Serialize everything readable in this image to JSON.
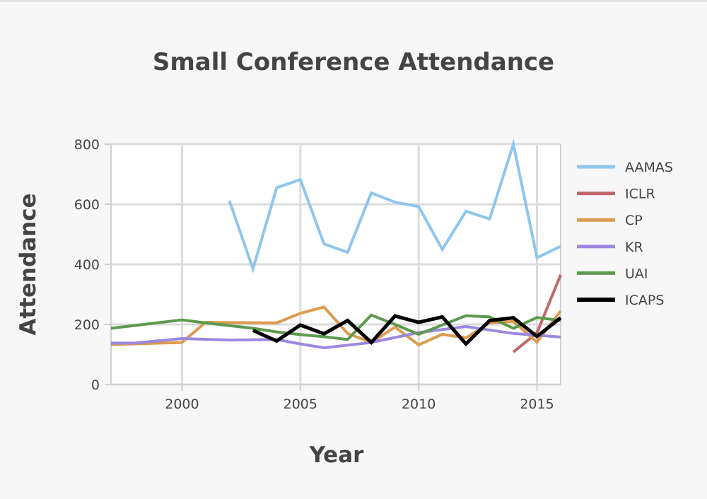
{
  "title": "Small Conference Attendance",
  "chart_data": {
    "type": "line",
    "title": "Small Conference Attendance",
    "xlabel": "Year",
    "ylabel": "Attendance",
    "xlim": [
      1997,
      2016
    ],
    "ylim": [
      0,
      800
    ],
    "x_ticks": [
      2000,
      2005,
      2010,
      2015
    ],
    "y_ticks": [
      0,
      200,
      400,
      600,
      800
    ],
    "grid": true,
    "legend_position": "right",
    "series": [
      {
        "name": "AAMAS",
        "color": "#8ec6ee",
        "points": [
          [
            2002,
            612
          ],
          [
            2003,
            385
          ],
          [
            2004,
            655
          ],
          [
            2005,
            682
          ],
          [
            2006,
            468
          ],
          [
            2007,
            440
          ],
          [
            2008,
            638
          ],
          [
            2009,
            607
          ],
          [
            2010,
            592
          ],
          [
            2011,
            450
          ],
          [
            2012,
            577
          ],
          [
            2013,
            551
          ],
          [
            2014,
            800
          ],
          [
            2015,
            422
          ],
          [
            2016,
            460
          ]
        ]
      },
      {
        "name": "ICLR",
        "color": "#c06868",
        "points": [
          [
            2014,
            108
          ],
          [
            2015,
            172
          ],
          [
            2016,
            365
          ]
        ]
      },
      {
        "name": "CP",
        "color": "#dd9b50",
        "points": [
          [
            1997,
            133
          ],
          [
            2000,
            140
          ],
          [
            2001,
            207
          ],
          [
            2004,
            205
          ],
          [
            2005,
            237
          ],
          [
            2006,
            258
          ],
          [
            2007,
            170
          ],
          [
            2008,
            140
          ],
          [
            2009,
            191
          ],
          [
            2010,
            132
          ],
          [
            2011,
            167
          ],
          [
            2012,
            155
          ],
          [
            2013,
            205
          ],
          [
            2014,
            210
          ],
          [
            2015,
            141
          ],
          [
            2016,
            245
          ]
        ]
      },
      {
        "name": "KR",
        "color": "#9c88de",
        "points": [
          [
            1997,
            138
          ],
          [
            1998,
            138
          ],
          [
            2000,
            153
          ],
          [
            2002,
            148
          ],
          [
            2004,
            150
          ],
          [
            2005,
            135
          ],
          [
            2006,
            122
          ],
          [
            2008,
            140
          ],
          [
            2010,
            173
          ],
          [
            2012,
            193
          ],
          [
            2014,
            170
          ],
          [
            2016,
            158
          ]
        ]
      },
      {
        "name": "UAI",
        "color": "#5c9b4e",
        "points": [
          [
            1997,
            187
          ],
          [
            2000,
            215
          ],
          [
            2001,
            205
          ],
          [
            2003,
            187
          ],
          [
            2004,
            175
          ],
          [
            2005,
            166
          ],
          [
            2006,
            159
          ],
          [
            2007,
            150
          ],
          [
            2008,
            231
          ],
          [
            2009,
            200
          ],
          [
            2010,
            167
          ],
          [
            2011,
            198
          ],
          [
            2012,
            229
          ],
          [
            2013,
            225
          ],
          [
            2014,
            187
          ],
          [
            2015,
            223
          ],
          [
            2016,
            213
          ]
        ]
      },
      {
        "name": "ICAPS",
        "color": "#000000",
        "points": [
          [
            2003,
            180
          ],
          [
            2004,
            145
          ],
          [
            2005,
            198
          ],
          [
            2006,
            169
          ],
          [
            2007,
            213
          ],
          [
            2008,
            140
          ],
          [
            2009,
            228
          ],
          [
            2010,
            207
          ],
          [
            2011,
            225
          ],
          [
            2012,
            135
          ],
          [
            2013,
            213
          ],
          [
            2014,
            222
          ],
          [
            2015,
            160
          ],
          [
            2016,
            222
          ]
        ]
      }
    ]
  }
}
